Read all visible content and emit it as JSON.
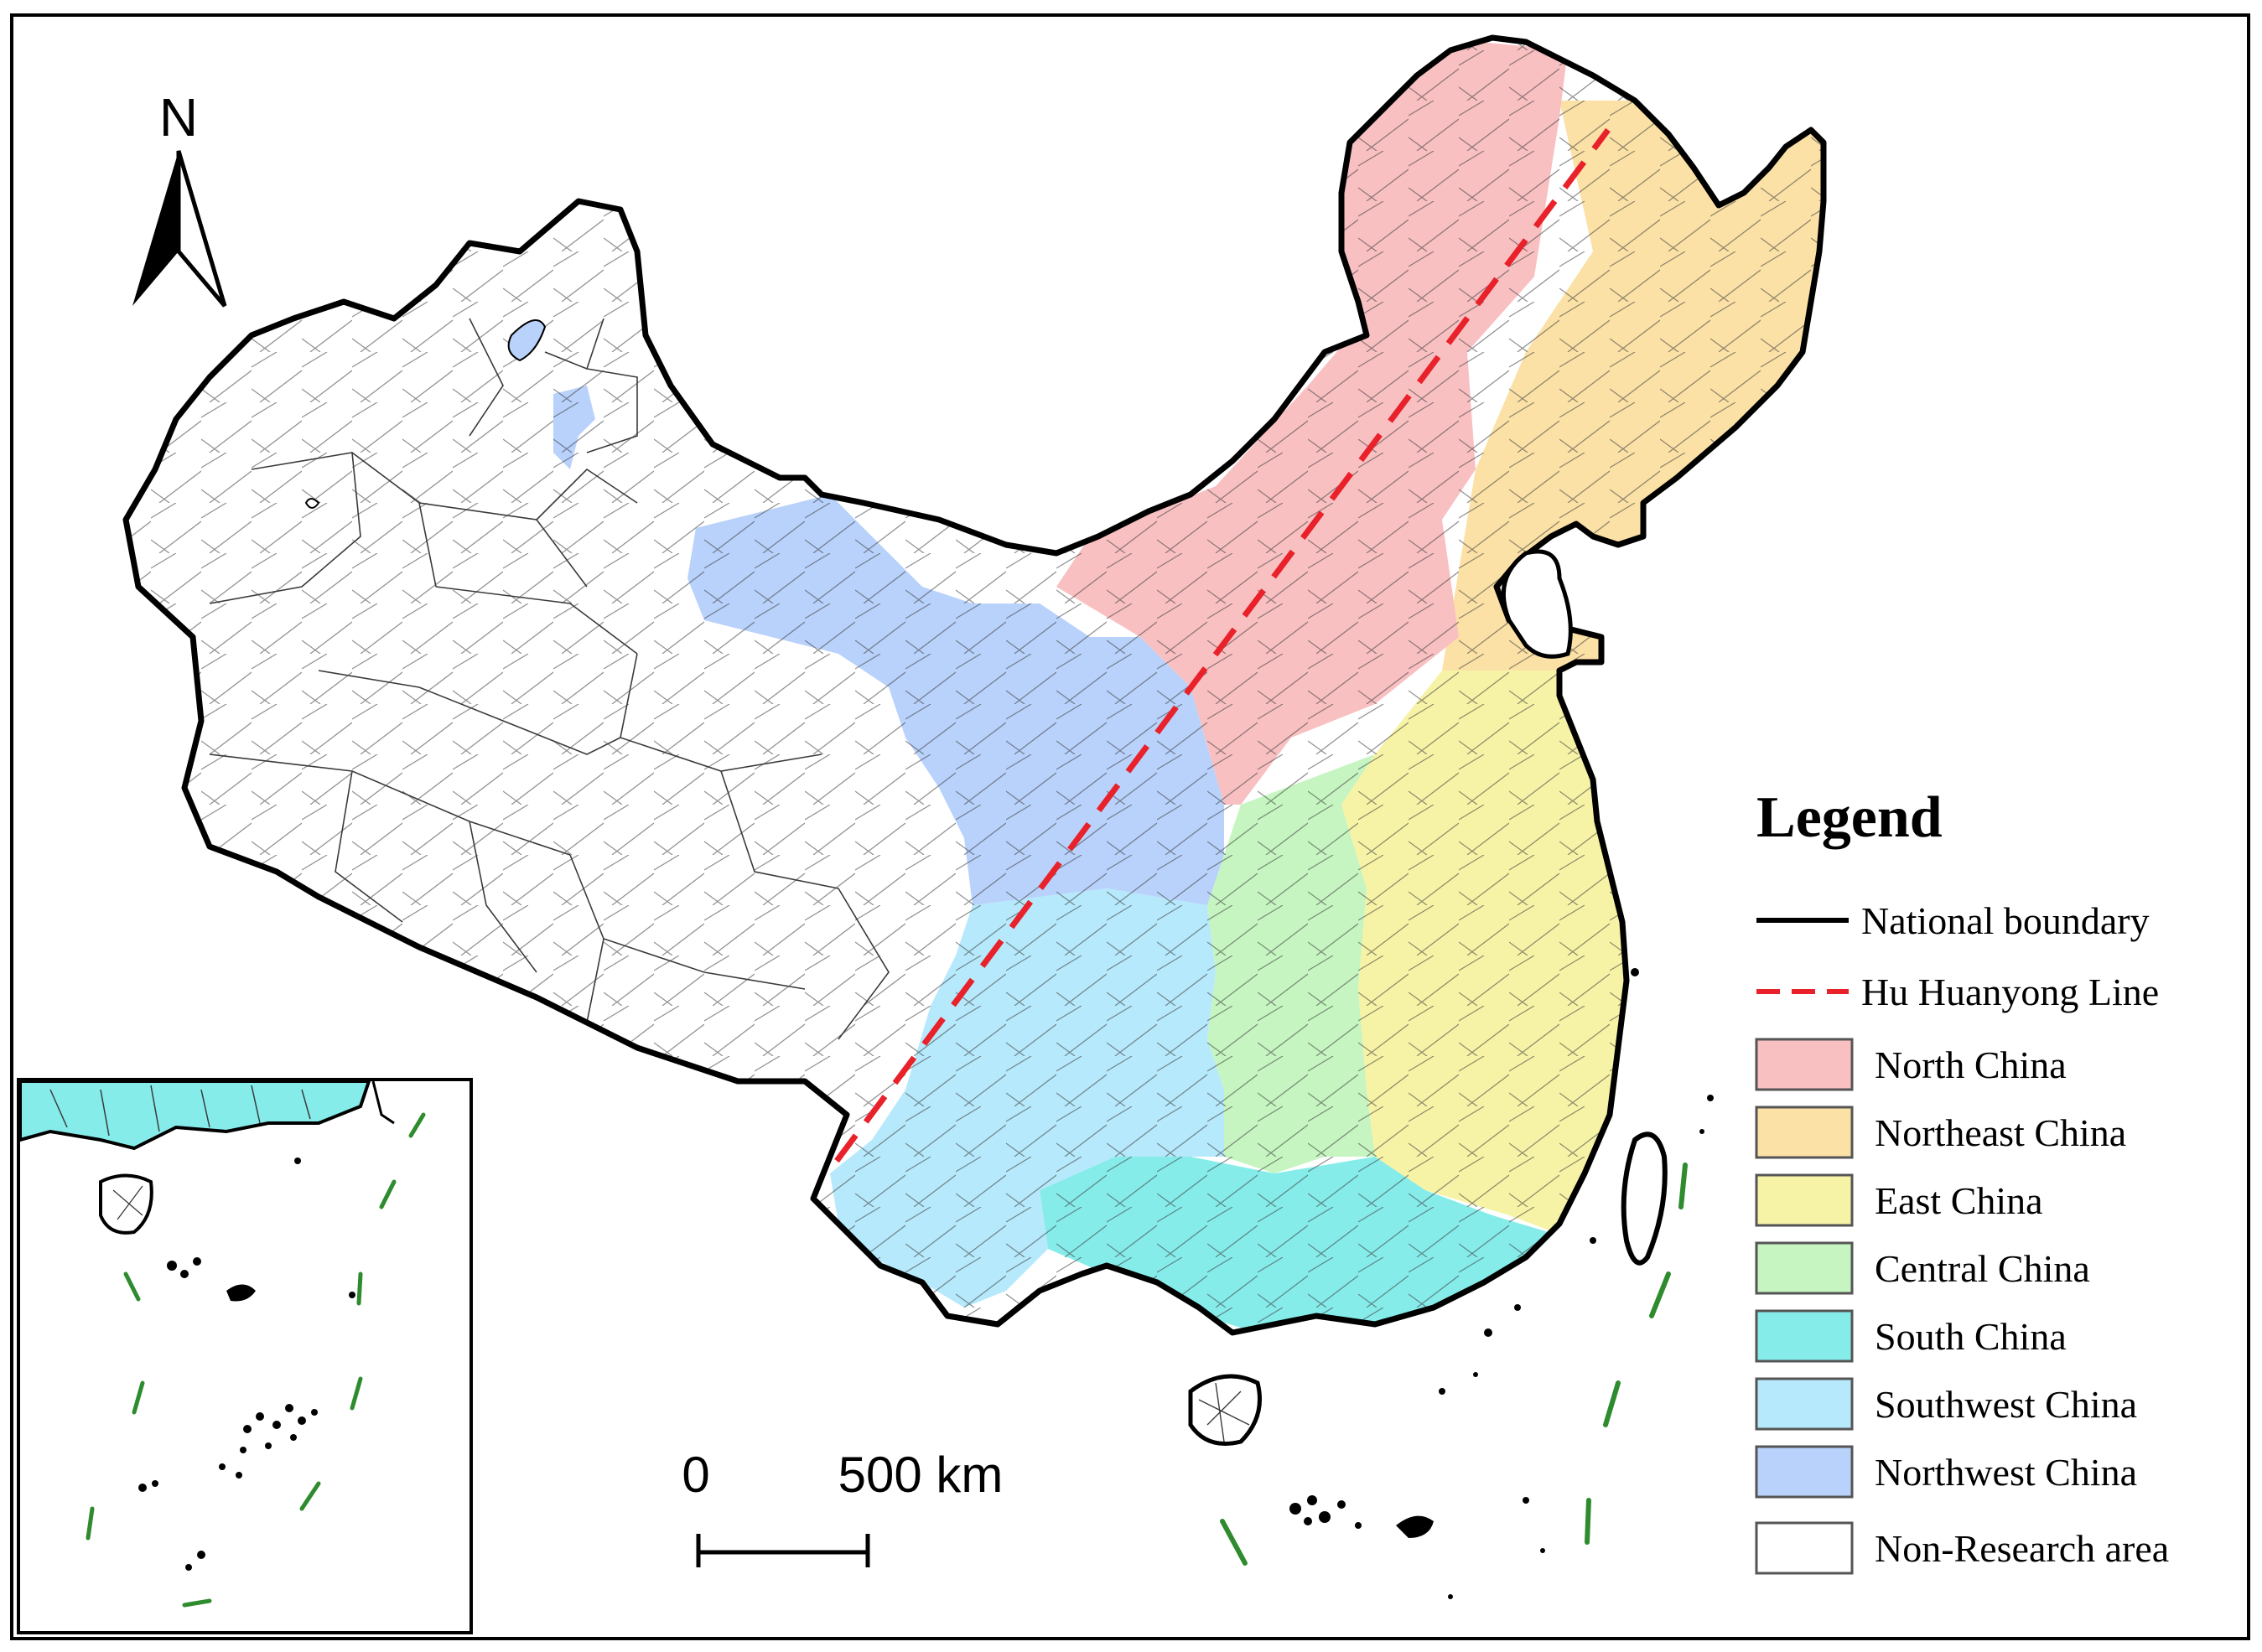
{
  "north_arrow": {
    "letter": "N",
    "icon": "north-arrow-icon"
  },
  "legend": {
    "title": "Legend",
    "items": [
      {
        "label": "National boundary",
        "symbol": "line",
        "color": "#000000"
      },
      {
        "label": "Hu Huanyong Line",
        "symbol": "dashed-line",
        "color": "#e8212a"
      },
      {
        "label": "North China",
        "symbol": "patch",
        "color": "#f9c0c2"
      },
      {
        "label": "Northeast China",
        "symbol": "patch",
        "color": "#fbe1a6"
      },
      {
        "label": "East China",
        "symbol": "patch",
        "color": "#f7f3a6"
      },
      {
        "label": "Central China",
        "symbol": "patch",
        "color": "#c6f5c1"
      },
      {
        "label": "South China",
        "symbol": "patch",
        "color": "#86ecea"
      },
      {
        "label": "Southwest China",
        "symbol": "patch",
        "color": "#b6e9fb"
      },
      {
        "label": "Northwest China",
        "symbol": "patch",
        "color": "#b9d2fb"
      },
      {
        "label": "Non-Research area",
        "symbol": "patch",
        "color": "#ffffff"
      }
    ]
  },
  "scale_bar": {
    "zero_label": "0",
    "distance_label": "500 km"
  }
}
